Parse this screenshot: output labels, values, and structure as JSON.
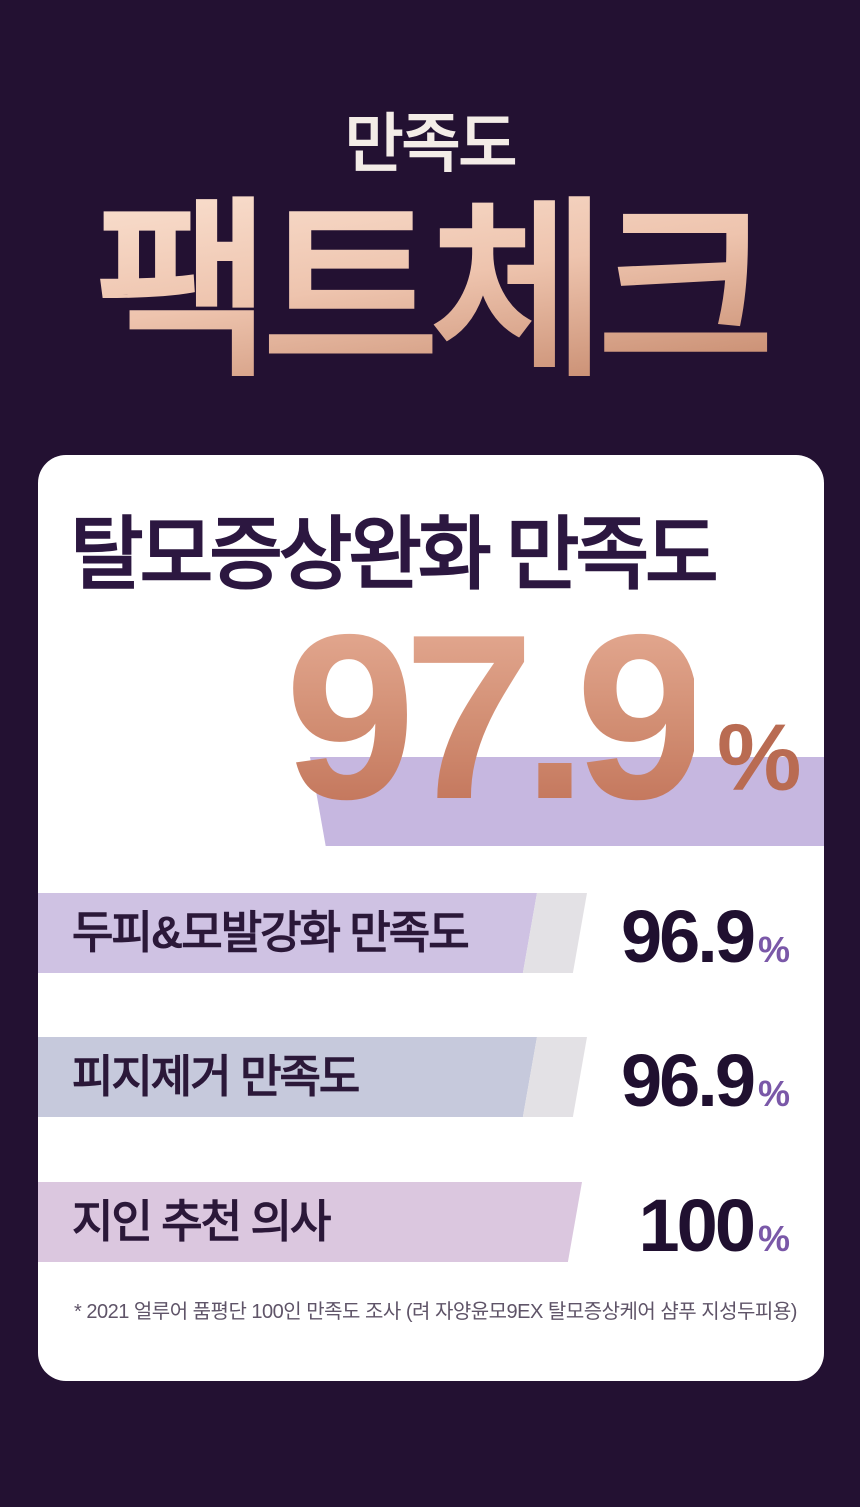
{
  "chart_data": {
    "type": "bar",
    "title": "만족도 팩트체크",
    "categories": [
      "탈모증상완화 만족도",
      "두피&모발강화 만족도",
      "피지제거 만족도",
      "지인 추천 의사"
    ],
    "values": [
      97.9,
      96.9,
      96.9,
      100
    ],
    "unit": "%",
    "ylim": [
      0,
      100
    ],
    "legend": "none",
    "source_note": "* 2021 얼루어 품평단 100인 만족도 조사 (려 자양윤모9EX 탈모증상케어 샴푸 지성두피용)"
  },
  "header": {
    "subtitle": "만족도",
    "title": "팩트체크"
  },
  "card": {
    "heading": "탈모증상완화 만족도",
    "hero": {
      "value": "97.9",
      "unit": "%",
      "band_color": "#c6b7e0"
    },
    "rows": [
      {
        "label": "두피&모발강화 만족도",
        "value": "96.9",
        "unit": "%",
        "band_color": "#cfc2e3"
      },
      {
        "label": "피지제거 만족도",
        "value": "96.9",
        "unit": "%",
        "band_color": "#c6c9dc"
      },
      {
        "label": "지인 추천 의사",
        "value": "100",
        "unit": "%",
        "band_color": "#dbc7df"
      }
    ],
    "footnote": "* 2021 얼루어 품평단 100인 만족도 조사 (려 자양윤모9EX 탈모증상케어 샴푸 지성두피용)"
  },
  "colors": {
    "background": "#231132",
    "card_background": "#ffffff",
    "subtitle_text": "#f3ece7",
    "title_gradient_top": "#f8dccb",
    "title_gradient_bottom": "#bd7f64",
    "hero_value_gradient_top": "#e2a78f",
    "hero_value_gradient_bottom": "#bf6f55",
    "hero_unit": "#b96b52",
    "heading_text": "#2c1740",
    "row_label_text": "#2b1839",
    "row_value_text": "#201030",
    "row_unit_text": "#7a58a8",
    "gray_accent": "#e3e1e5",
    "footnote_text": "#5f5468"
  }
}
